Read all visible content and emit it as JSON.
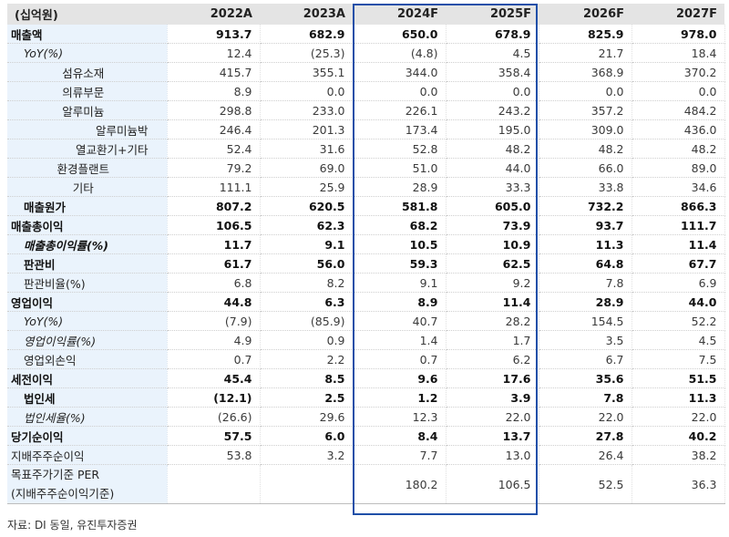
{
  "table": {
    "unit_label": "(십억원)",
    "columns": [
      "2022A",
      "2023A",
      "2024F",
      "2025F",
      "2026F",
      "2027F"
    ],
    "highlighted_columns": [
      "2024F",
      "2025F"
    ],
    "highlight_color": "#1f4fa8",
    "rows": [
      {
        "label": "매출액",
        "values": [
          "913.7",
          "682.9",
          "650.0",
          "678.9",
          "825.9",
          "978.0"
        ]
      },
      {
        "label": "YoY(%)",
        "values": [
          "12.4",
          "(25.3)",
          "(4.8)",
          "4.5",
          "21.7",
          "18.4"
        ]
      },
      {
        "label": "섬유소재",
        "values": [
          "415.7",
          "355.1",
          "344.0",
          "358.4",
          "368.9",
          "370.2"
        ]
      },
      {
        "label": "의류부문",
        "values": [
          "8.9",
          "0.0",
          "0.0",
          "0.0",
          "0.0",
          "0.0"
        ]
      },
      {
        "label": "알루미늄",
        "values": [
          "298.8",
          "233.0",
          "226.1",
          "243.2",
          "357.2",
          "484.2"
        ]
      },
      {
        "label": "알루미늄박",
        "values": [
          "246.4",
          "201.3",
          "173.4",
          "195.0",
          "309.0",
          "436.0"
        ]
      },
      {
        "label": "열교환기+기타",
        "values": [
          "52.4",
          "31.6",
          "52.8",
          "48.2",
          "48.2",
          "48.2"
        ]
      },
      {
        "label": "환경플랜트",
        "values": [
          "79.2",
          "69.0",
          "51.0",
          "44.0",
          "66.0",
          "89.0"
        ]
      },
      {
        "label": "기타",
        "values": [
          "111.1",
          "25.9",
          "28.9",
          "33.3",
          "33.8",
          "34.6"
        ]
      },
      {
        "label": "매출원가",
        "values": [
          "807.2",
          "620.5",
          "581.8",
          "605.0",
          "732.2",
          "866.3"
        ]
      },
      {
        "label": "매출총이익",
        "values": [
          "106.5",
          "62.3",
          "68.2",
          "73.9",
          "93.7",
          "111.7"
        ]
      },
      {
        "label": "매출총이익률(%)",
        "values": [
          "11.7",
          "9.1",
          "10.5",
          "10.9",
          "11.3",
          "11.4"
        ]
      },
      {
        "label": "판관비",
        "values": [
          "61.7",
          "56.0",
          "59.3",
          "62.5",
          "64.8",
          "67.7"
        ]
      },
      {
        "label": "판관비율(%)",
        "values": [
          "6.8",
          "8.2",
          "9.1",
          "9.2",
          "7.8",
          "6.9"
        ]
      },
      {
        "label": "영업이익",
        "values": [
          "44.8",
          "6.3",
          "8.9",
          "11.4",
          "28.9",
          "44.0"
        ]
      },
      {
        "label": "YoY(%)",
        "values": [
          "(7.9)",
          "(85.9)",
          "40.7",
          "28.2",
          "154.5",
          "52.2"
        ]
      },
      {
        "label": "영업이익률(%)",
        "values": [
          "4.9",
          "0.9",
          "1.4",
          "1.7",
          "3.5",
          "4.5"
        ]
      },
      {
        "label": "영업외손익",
        "values": [
          "0.7",
          "2.2",
          "0.7",
          "6.2",
          "6.7",
          "7.5"
        ]
      },
      {
        "label": "세전이익",
        "values": [
          "45.4",
          "8.5",
          "9.6",
          "17.6",
          "35.6",
          "51.5"
        ]
      },
      {
        "label": "법인세",
        "values": [
          "(12.1)",
          "2.5",
          "1.2",
          "3.9",
          "7.8",
          "11.3"
        ]
      },
      {
        "label": "법인세율(%)",
        "values": [
          "(26.6)",
          "29.6",
          "12.3",
          "22.0",
          "22.0",
          "22.0"
        ]
      },
      {
        "label": "당기순이익",
        "values": [
          "57.5",
          "6.0",
          "8.4",
          "13.7",
          "27.8",
          "40.2"
        ]
      },
      {
        "label": "지배주주순이익",
        "values": [
          "53.8",
          "3.2",
          "7.7",
          "13.0",
          "26.4",
          "38.2"
        ]
      },
      {
        "label_line1": "목표주가기준 PER",
        "label_line2": "(지배주주순이익기준)",
        "values": [
          "",
          "",
          "180.2",
          "106.5",
          "52.5",
          "36.3"
        ]
      }
    ]
  },
  "source": "자료: DI 동일, 유진투자증권"
}
